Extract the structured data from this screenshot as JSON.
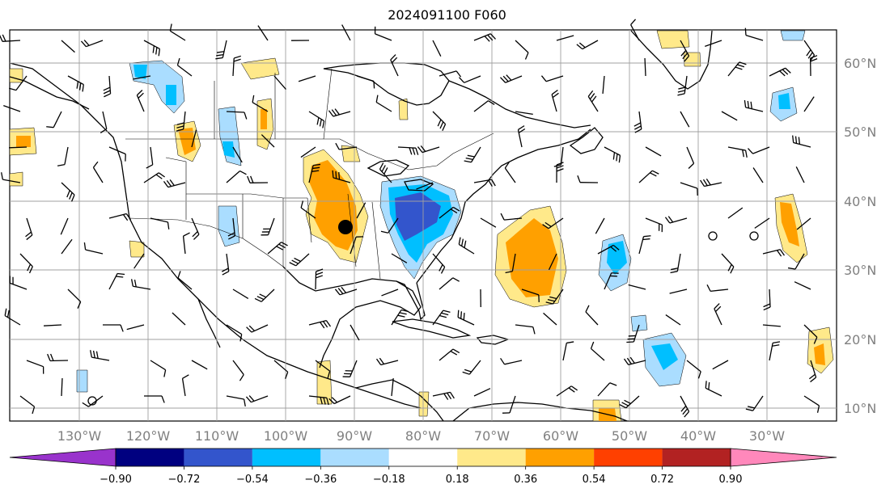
{
  "title": "2024091100 F060",
  "colors": {
    "coast": "#000000",
    "grid": "#a0a0a0",
    "label": "#808080"
  },
  "lat_labels": [
    "60°N",
    "50°N",
    "40°N",
    "30°N",
    "20°N",
    "10°N"
  ],
  "lon_labels": [
    "130°W",
    "120°W",
    "110°W",
    "100°W",
    "90°W",
    "80°W",
    "70°W",
    "60°W",
    "50°W",
    "40°W",
    "30°W"
  ],
  "colorbar": {
    "colors": [
      "#9933cc",
      "#000080",
      "#3355cc",
      "#00bfff",
      "#aaddff",
      "#ffffff",
      "#ffe98a",
      "#ffa000",
      "#ff4000",
      "#b22222",
      "#ff88bb"
    ],
    "ticks": [
      "−0.90",
      "−0.72",
      "−0.54",
      "−0.36",
      "−0.18",
      "0.18",
      "0.36",
      "0.54",
      "0.72",
      "0.90"
    ]
  },
  "markers": {
    "station_dot": "center-dot"
  }
}
